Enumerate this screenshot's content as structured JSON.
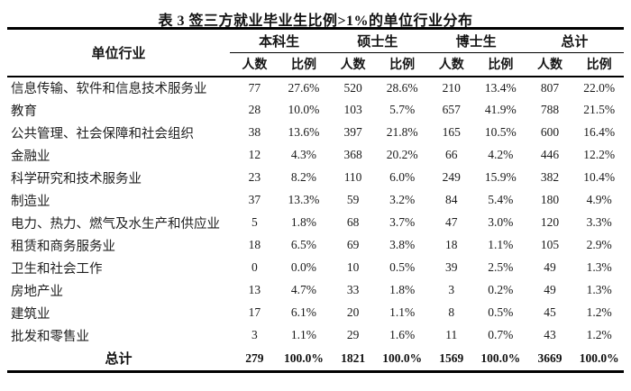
{
  "page": {
    "title": "表 3 签三方就业毕业生比例>1%的单位行业分布"
  },
  "table": {
    "industry_header": "单位行业",
    "groups": [
      {
        "label": "本科生",
        "sub": [
          "人数",
          "比例"
        ]
      },
      {
        "label": "硕士生",
        "sub": [
          "人数",
          "比例"
        ]
      },
      {
        "label": "博士生",
        "sub": [
          "人数",
          "比例"
        ]
      },
      {
        "label": "总计",
        "sub": [
          "人数",
          "比例"
        ]
      }
    ],
    "rows": [
      {
        "industry": "信息传输、软件和信息技术服务业",
        "values": [
          "77",
          "27.6%",
          "520",
          "28.6%",
          "210",
          "13.4%",
          "807",
          "22.0%"
        ]
      },
      {
        "industry": "教育",
        "values": [
          "28",
          "10.0%",
          "103",
          "5.7%",
          "657",
          "41.9%",
          "788",
          "21.5%"
        ]
      },
      {
        "industry": "公共管理、社会保障和社会组织",
        "values": [
          "38",
          "13.6%",
          "397",
          "21.8%",
          "165",
          "10.5%",
          "600",
          "16.4%"
        ]
      },
      {
        "industry": "金融业",
        "values": [
          "12",
          "4.3%",
          "368",
          "20.2%",
          "66",
          "4.2%",
          "446",
          "12.2%"
        ]
      },
      {
        "industry": "科学研究和技术服务业",
        "values": [
          "23",
          "8.2%",
          "110",
          "6.0%",
          "249",
          "15.9%",
          "382",
          "10.4%"
        ]
      },
      {
        "industry": "制造业",
        "values": [
          "37",
          "13.3%",
          "59",
          "3.2%",
          "84",
          "5.4%",
          "180",
          "4.9%"
        ]
      },
      {
        "industry": "电力、热力、燃气及水生产和供应业",
        "values": [
          "5",
          "1.8%",
          "68",
          "3.7%",
          "47",
          "3.0%",
          "120",
          "3.3%"
        ]
      },
      {
        "industry": "租赁和商务服务业",
        "values": [
          "18",
          "6.5%",
          "69",
          "3.8%",
          "18",
          "1.1%",
          "105",
          "2.9%"
        ]
      },
      {
        "industry": "卫生和社会工作",
        "values": [
          "0",
          "0.0%",
          "10",
          "0.5%",
          "39",
          "2.5%",
          "49",
          "1.3%"
        ]
      },
      {
        "industry": "房地产业",
        "values": [
          "13",
          "4.7%",
          "33",
          "1.8%",
          "3",
          "0.2%",
          "49",
          "1.3%"
        ]
      },
      {
        "industry": "建筑业",
        "values": [
          "17",
          "6.1%",
          "20",
          "1.1%",
          "8",
          "0.5%",
          "45",
          "1.2%"
        ]
      },
      {
        "industry": "批发和零售业",
        "values": [
          "3",
          "1.1%",
          "29",
          "1.6%",
          "11",
          "0.7%",
          "43",
          "1.2%"
        ]
      }
    ],
    "total": {
      "label": "总计",
      "values": [
        "279",
        "100.0%",
        "1821",
        "100.0%",
        "1569",
        "100.0%",
        "3669",
        "100.0%"
      ]
    }
  }
}
